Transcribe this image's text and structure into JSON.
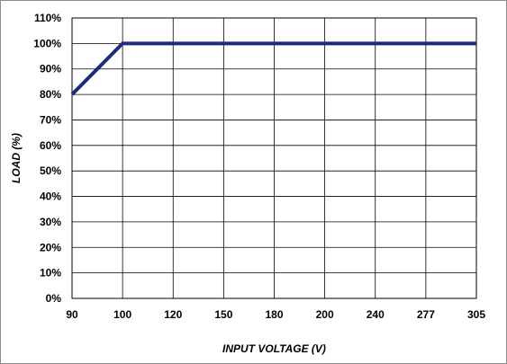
{
  "chart_data": {
    "type": "line",
    "title": "",
    "xlabel": "INPUT  VOLTAGE (V)",
    "ylabel": "LOAD (%)",
    "x_ticks": [
      "90",
      "100",
      "120",
      "150",
      "180",
      "200",
      "240",
      "277",
      "305"
    ],
    "y_ticks": [
      "0%",
      "10%",
      "20%",
      "30%",
      "40%",
      "50%",
      "60%",
      "70%",
      "80%",
      "90%",
      "100%",
      "110%"
    ],
    "ylim": [
      0,
      110
    ],
    "grid": true,
    "legend": "none",
    "series": [
      {
        "x": [
          "90",
          "100",
          "305"
        ],
        "values": [
          80,
          100,
          100
        ],
        "color": "#1f2a7a"
      }
    ]
  }
}
